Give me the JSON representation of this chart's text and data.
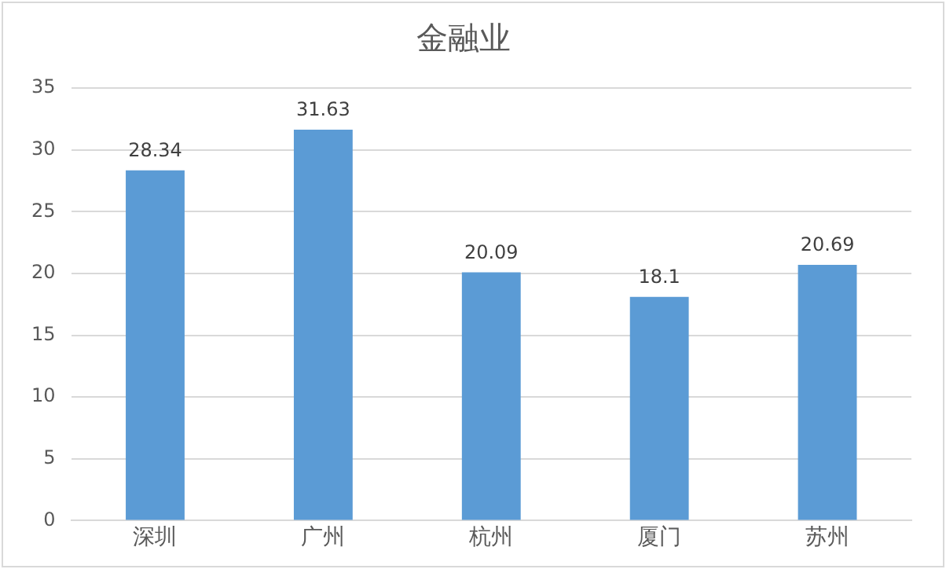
{
  "chart_data": {
    "type": "bar",
    "title": "金融业",
    "categories": [
      "深圳",
      "广州",
      "杭州",
      "厦门",
      "苏州"
    ],
    "values": [
      28.34,
      31.63,
      20.09,
      18.1,
      20.69
    ],
    "color": "#5b9bd5",
    "ylim": [
      0,
      35
    ],
    "yticks": [
      0,
      5,
      10,
      15,
      20,
      25,
      30,
      35
    ],
    "grid": "y",
    "data_labels": true,
    "legend": false
  }
}
